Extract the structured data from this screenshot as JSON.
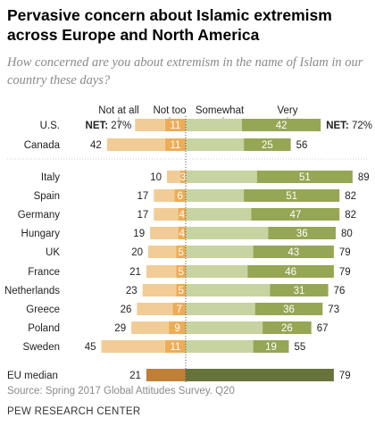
{
  "title": "Pervasive concern about Islamic extremism across Europe and North America",
  "subtitle": "How concerned are you about extremism in the name of Islam in our country these days?",
  "source": "Source: Spring 2017 Global Attitudes Survey. Q20",
  "org": "PEW RESEARCH CENTER",
  "colors": {
    "not_at_all": "#f1cc96",
    "not_too": "#eeac56",
    "somewhat": "#c7d3a0",
    "very": "#95a654",
    "median_neg": "#c07f36",
    "median_pos": "#66733a",
    "net_label": "#000000"
  },
  "chart_data": {
    "type": "bar",
    "orientation": "horizontal",
    "layout": "diverging-stacked",
    "series_names": [
      "Not at all",
      "Not too",
      "Somewhat",
      "Very"
    ],
    "net_prefix": "NET:",
    "categories": [
      "U.S.",
      "Canada",
      "Italy",
      "Spain",
      "Germany",
      "Hungary",
      "UK",
      "France",
      "Netherlands",
      "Greece",
      "Poland",
      "Sweden",
      "EU median"
    ],
    "rows": [
      {
        "country": "U.S.",
        "net_not": 27,
        "not_too": 11,
        "very": 42,
        "net_concerned": 72,
        "net_label": true
      },
      {
        "country": "Canada",
        "net_not": 42,
        "not_too": 11,
        "very": 25,
        "net_concerned": 56
      },
      {
        "country": "Italy",
        "net_not": 10,
        "not_too": 3,
        "very": 51,
        "net_concerned": 89
      },
      {
        "country": "Spain",
        "net_not": 17,
        "not_too": 6,
        "very": 51,
        "net_concerned": 82
      },
      {
        "country": "Germany",
        "net_not": 17,
        "not_too": 4,
        "very": 47,
        "net_concerned": 82
      },
      {
        "country": "Hungary",
        "net_not": 19,
        "not_too": 4,
        "very": 36,
        "net_concerned": 80
      },
      {
        "country": "UK",
        "net_not": 20,
        "not_too": 5,
        "very": 43,
        "net_concerned": 79
      },
      {
        "country": "France",
        "net_not": 21,
        "not_too": 5,
        "very": 46,
        "net_concerned": 79
      },
      {
        "country": "Netherlands",
        "net_not": 23,
        "not_too": 5,
        "very": 31,
        "net_concerned": 76
      },
      {
        "country": "Greece",
        "net_not": 26,
        "not_too": 7,
        "very": 36,
        "net_concerned": 73
      },
      {
        "country": "Poland",
        "net_not": 29,
        "not_too": 9,
        "very": 26,
        "net_concerned": 67
      },
      {
        "country": "Sweden",
        "net_not": 45,
        "not_too": 11,
        "very": 19,
        "net_concerned": 55
      },
      {
        "country": "EU median",
        "net_not": 21,
        "net_concerned": 79,
        "median": true
      }
    ]
  }
}
